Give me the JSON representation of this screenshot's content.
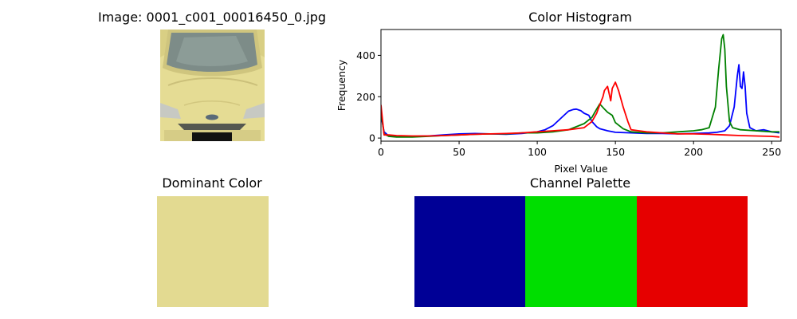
{
  "image_panel": {
    "title": "Image: 0001_c001_00016450_0.jpg",
    "thumbnail": "yellow-car-front-photo"
  },
  "dominant_panel": {
    "title": "Dominant Color",
    "color": "#e3da91"
  },
  "palette_panel": {
    "title": "Channel Palette",
    "colors": [
      {
        "channel": "blue",
        "hex": "#000096"
      },
      {
        "channel": "green",
        "hex": "#00de00"
      },
      {
        "channel": "red",
        "hex": "#e60000"
      }
    ]
  },
  "chart_data": {
    "type": "line",
    "title": "Color Histogram",
    "xlabel": "Pixel Value",
    "ylabel": "Frequency",
    "xlim": [
      0,
      256
    ],
    "ylim": [
      -15,
      525
    ],
    "xticks": [
      0,
      50,
      100,
      150,
      200,
      250
    ],
    "yticks": [
      0,
      200,
      400
    ],
    "grid": false,
    "legend": "none",
    "series": [
      {
        "color": "#0000ff",
        "x": [
          0,
          2,
          5,
          10,
          20,
          30,
          40,
          50,
          60,
          70,
          80,
          90,
          100,
          105,
          110,
          115,
          120,
          123,
          125,
          128,
          130,
          133,
          135,
          138,
          140,
          145,
          150,
          160,
          170,
          180,
          190,
          200,
          210,
          215,
          220,
          223,
          226,
          228,
          229,
          230,
          231,
          232,
          233,
          234,
          236,
          240,
          245,
          250,
          255
        ],
        "y": [
          110,
          30,
          10,
          6,
          8,
          10,
          15,
          20,
          22,
          20,
          18,
          22,
          30,
          40,
          60,
          95,
          130,
          138,
          140,
          132,
          120,
          110,
          80,
          55,
          45,
          35,
          28,
          25,
          22,
          22,
          20,
          22,
          25,
          28,
          35,
          60,
          150,
          300,
          355,
          250,
          240,
          320,
          250,
          120,
          50,
          35,
          40,
          30,
          25
        ]
      },
      {
        "color": "#008000",
        "x": [
          0,
          2,
          5,
          10,
          20,
          30,
          40,
          50,
          60,
          70,
          80,
          90,
          100,
          110,
          120,
          125,
          130,
          135,
          138,
          140,
          143,
          145,
          148,
          150,
          155,
          160,
          170,
          180,
          190,
          200,
          205,
          210,
          214,
          216,
          218,
          219,
          220,
          221,
          223,
          225,
          230,
          240,
          250,
          255
        ],
        "y": [
          130,
          20,
          8,
          5,
          5,
          8,
          12,
          15,
          18,
          20,
          20,
          25,
          25,
          30,
          40,
          55,
          70,
          100,
          140,
          165,
          140,
          125,
          110,
          75,
          45,
          30,
          25,
          25,
          30,
          35,
          40,
          50,
          150,
          330,
          480,
          500,
          430,
          250,
          80,
          50,
          40,
          35,
          30,
          30
        ]
      },
      {
        "color": "#ff0000",
        "x": [
          0,
          2,
          5,
          10,
          20,
          30,
          40,
          50,
          60,
          70,
          80,
          90,
          100,
          110,
          120,
          130,
          135,
          138,
          140,
          142,
          143,
          145,
          147,
          148,
          150,
          152,
          155,
          158,
          160,
          165,
          170,
          180,
          190,
          200,
          210,
          220,
          230,
          240,
          250,
          255
        ],
        "y": [
          160,
          15,
          15,
          12,
          10,
          10,
          12,
          15,
          18,
          20,
          22,
          25,
          30,
          35,
          40,
          50,
          80,
          120,
          160,
          200,
          230,
          250,
          180,
          240,
          270,
          230,
          150,
          80,
          40,
          35,
          30,
          25,
          20,
          20,
          18,
          15,
          12,
          10,
          8,
          5
        ]
      }
    ]
  }
}
